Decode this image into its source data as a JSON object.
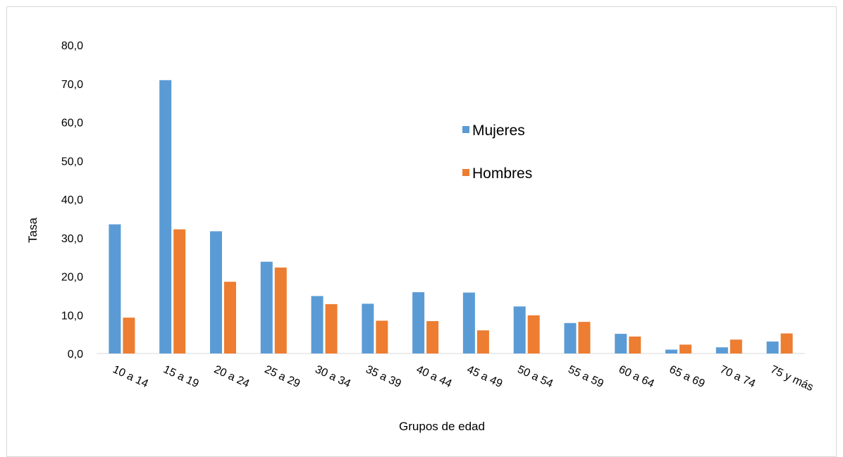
{
  "chart_data": {
    "type": "bar",
    "title": "",
    "xlabel": "Grupos de edad",
    "ylabel": "Tasa",
    "ylim": [
      0,
      80
    ],
    "yticks": [
      0,
      10,
      20,
      30,
      40,
      50,
      60,
      70,
      80
    ],
    "ytick_labels": [
      "0,0",
      "10,0",
      "20,0",
      "30,0",
      "40,0",
      "50,0",
      "60,0",
      "70,0",
      "80,0"
    ],
    "grid": false,
    "legend_position": "top-center",
    "categories": [
      "10 a 14",
      "15 a 19",
      "20 a 24",
      "25 a 29",
      "30 a 34",
      "35 a 39",
      "40 a 44",
      "45 a 49",
      "50 a 54",
      "55 a 59",
      "60 a 64",
      "65 a 69",
      "70 a 74",
      "75 y más"
    ],
    "series": [
      {
        "name": "Mujeres",
        "color": "#5b9bd5",
        "values": [
          33.5,
          70.9,
          31.7,
          23.8,
          14.9,
          12.9,
          15.9,
          15.8,
          12.2,
          7.9,
          5.1,
          1.0,
          1.6,
          3.1
        ]
      },
      {
        "name": "Hombres",
        "color": "#ed7d31",
        "values": [
          9.3,
          32.2,
          18.6,
          22.3,
          12.8,
          8.5,
          8.4,
          6.0,
          9.9,
          8.2,
          4.4,
          2.3,
          3.6,
          5.2
        ]
      }
    ]
  }
}
